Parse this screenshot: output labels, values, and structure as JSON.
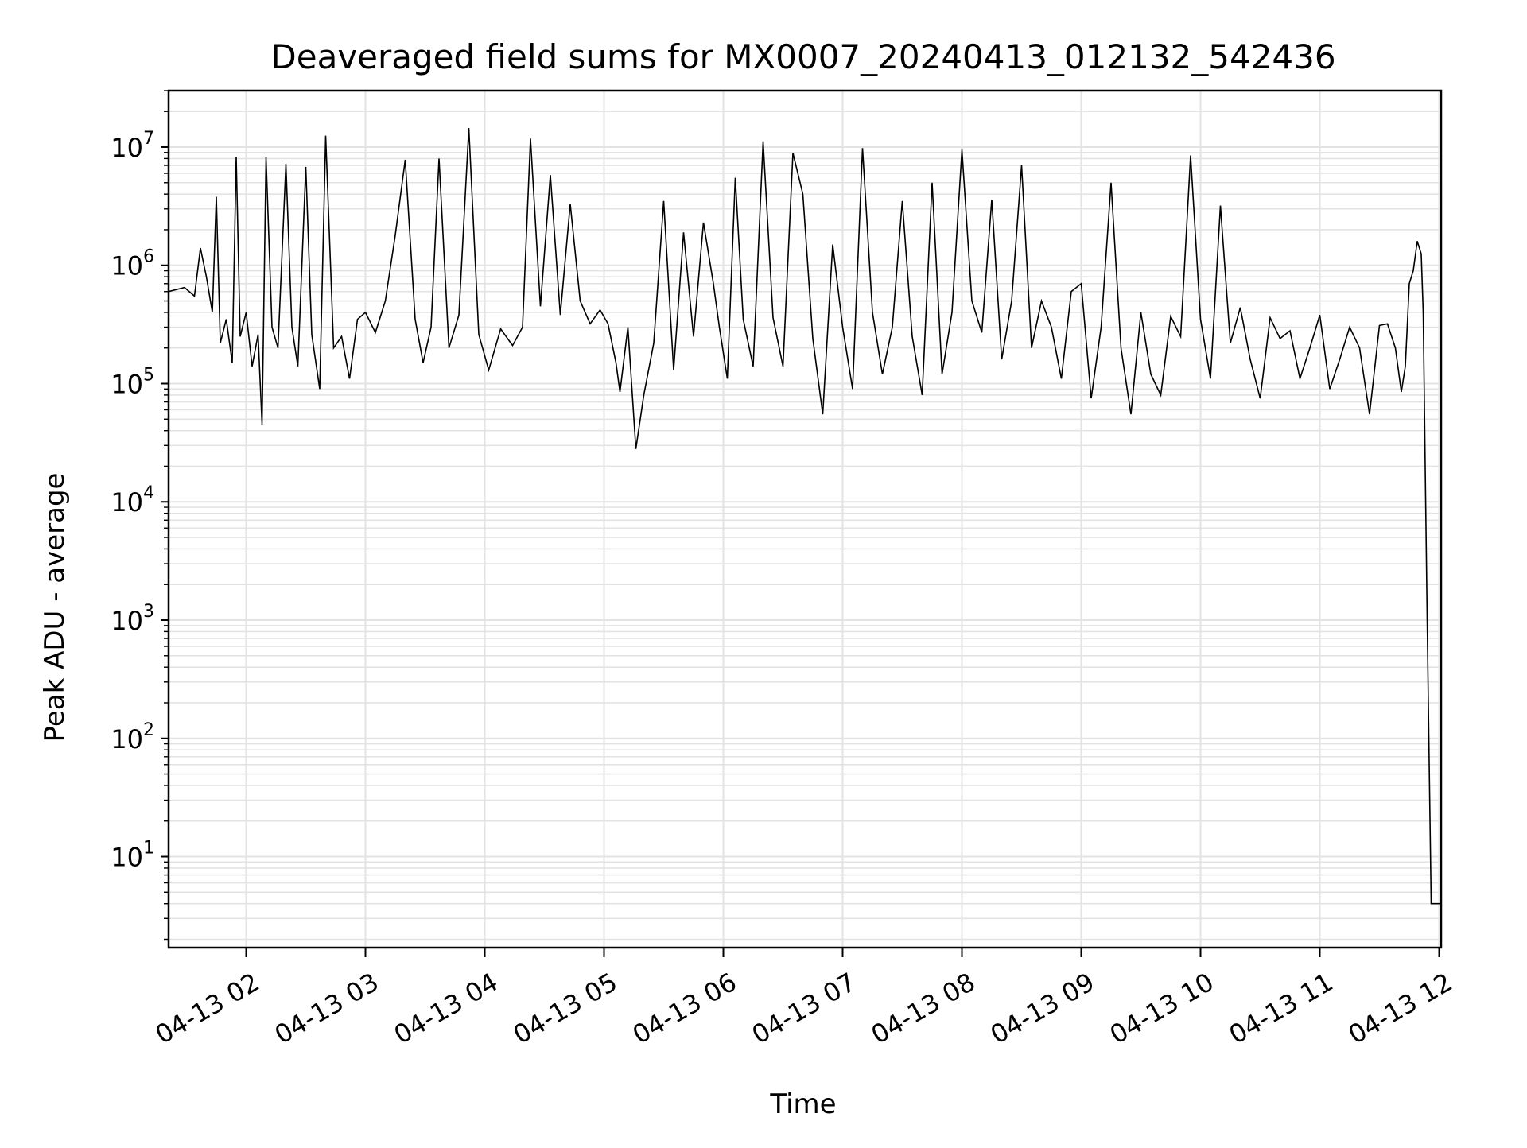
{
  "chart_data": {
    "type": "line",
    "title": "Deaveraged field sums for MX0007_20240413_012132_542436",
    "xlabel": "Time",
    "ylabel": "Peak ADU - average",
    "yscale": "log",
    "ylim": [
      1.7,
      30000000
    ],
    "xlim": [
      "2024-04-13 01:21",
      "2024-04-13 12:01"
    ],
    "grid": true,
    "legend": "none",
    "line_color": "#000000",
    "x_ticks": [
      "04-13 02",
      "04-13 03",
      "04-13 04",
      "04-13 05",
      "04-13 06",
      "04-13 07",
      "04-13 08",
      "04-13 09",
      "04-13 10",
      "04-13 11",
      "04-13 12"
    ],
    "y_ticks": [
      {
        "base": "10",
        "exp": "1",
        "value": 10
      },
      {
        "base": "10",
        "exp": "2",
        "value": 100
      },
      {
        "base": "10",
        "exp": "3",
        "value": 1000
      },
      {
        "base": "10",
        "exp": "4",
        "value": 10000
      },
      {
        "base": "10",
        "exp": "5",
        "value": 100000
      },
      {
        "base": "10",
        "exp": "6",
        "value": 1000000
      },
      {
        "base": "10",
        "exp": "7",
        "value": 10000000
      }
    ],
    "series": [
      {
        "x": [
          "2024-04-13 01:21",
          "2024-04-13 01:29",
          "2024-04-13 01:34",
          "2024-04-13 01:37",
          "2024-04-13 01:40",
          "2024-04-13 01:43",
          "2024-04-13 01:45",
          "2024-04-13 01:47",
          "2024-04-13 01:50",
          "2024-04-13 01:53",
          "2024-04-13 01:55",
          "2024-04-13 01:57",
          "2024-04-13 02:00",
          "2024-04-13 02:03",
          "2024-04-13 02:06",
          "2024-04-13 02:08",
          "2024-04-13 02:10",
          "2024-04-13 02:13",
          "2024-04-13 02:16",
          "2024-04-13 02:20",
          "2024-04-13 02:23",
          "2024-04-13 02:26",
          "2024-04-13 02:30",
          "2024-04-13 02:33",
          "2024-04-13 02:37",
          "2024-04-13 02:40",
          "2024-04-13 02:44",
          "2024-04-13 02:48",
          "2024-04-13 02:52",
          "2024-04-13 02:56",
          "2024-04-13 03:00",
          "2024-04-13 03:05",
          "2024-04-13 03:10",
          "2024-04-13 03:15",
          "2024-04-13 03:20",
          "2024-04-13 03:25",
          "2024-04-13 03:29",
          "2024-04-13 03:33",
          "2024-04-13 03:37",
          "2024-04-13 03:42",
          "2024-04-13 03:47",
          "2024-04-13 03:52",
          "2024-04-13 03:57",
          "2024-04-13 04:02",
          "2024-04-13 04:08",
          "2024-04-13 04:14",
          "2024-04-13 04:19",
          "2024-04-13 04:23",
          "2024-04-13 04:28",
          "2024-04-13 04:33",
          "2024-04-13 04:38",
          "2024-04-13 04:43",
          "2024-04-13 04:48",
          "2024-04-13 04:53",
          "2024-04-13 04:58",
          "2024-04-13 05:02",
          "2024-04-13 05:06",
          "2024-04-13 05:08",
          "2024-04-13 05:12",
          "2024-04-13 05:16",
          "2024-04-13 05:20",
          "2024-04-13 05:25",
          "2024-04-13 05:30",
          "2024-04-13 05:35",
          "2024-04-13 05:40",
          "2024-04-13 05:45",
          "2024-04-13 05:50",
          "2024-04-13 05:55",
          "2024-04-13 05:58",
          "2024-04-13 06:02",
          "2024-04-13 06:06",
          "2024-04-13 06:10",
          "2024-04-13 06:15",
          "2024-04-13 06:20",
          "2024-04-13 06:25",
          "2024-04-13 06:30",
          "2024-04-13 06:35",
          "2024-04-13 06:40",
          "2024-04-13 06:45",
          "2024-04-13 06:50",
          "2024-04-13 06:55",
          "2024-04-13 07:00",
          "2024-04-13 07:05",
          "2024-04-13 07:10",
          "2024-04-13 07:15",
          "2024-04-13 07:20",
          "2024-04-13 07:25",
          "2024-04-13 07:30",
          "2024-04-13 07:35",
          "2024-04-13 07:40",
          "2024-04-13 07:45",
          "2024-04-13 07:50",
          "2024-04-13 07:55",
          "2024-04-13 08:00",
          "2024-04-13 08:05",
          "2024-04-13 08:10",
          "2024-04-13 08:15",
          "2024-04-13 08:20",
          "2024-04-13 08:25",
          "2024-04-13 08:30",
          "2024-04-13 08:35",
          "2024-04-13 08:40",
          "2024-04-13 08:45",
          "2024-04-13 08:50",
          "2024-04-13 08:55",
          "2024-04-13 09:00",
          "2024-04-13 09:05",
          "2024-04-13 09:10",
          "2024-04-13 09:15",
          "2024-04-13 09:20",
          "2024-04-13 09:25",
          "2024-04-13 09:30",
          "2024-04-13 09:35",
          "2024-04-13 09:40",
          "2024-04-13 09:45",
          "2024-04-13 09:50",
          "2024-04-13 09:55",
          "2024-04-13 10:00",
          "2024-04-13 10:05",
          "2024-04-13 10:10",
          "2024-04-13 10:15",
          "2024-04-13 10:20",
          "2024-04-13 10:25",
          "2024-04-13 10:30",
          "2024-04-13 10:35",
          "2024-04-13 10:40",
          "2024-04-13 10:45",
          "2024-04-13 10:50",
          "2024-04-13 10:55",
          "2024-04-13 11:00",
          "2024-04-13 11:05",
          "2024-04-13 11:10",
          "2024-04-13 11:15",
          "2024-04-13 11:20",
          "2024-04-13 11:25",
          "2024-04-13 11:30",
          "2024-04-13 11:34",
          "2024-04-13 11:38",
          "2024-04-13 11:41",
          "2024-04-13 11:43",
          "2024-04-13 11:45",
          "2024-04-13 11:47",
          "2024-04-13 11:49",
          "2024-04-13 11:51",
          "2024-04-13 11:52",
          "2024-04-13 11:54",
          "2024-04-13 11:56",
          "2024-04-13 12:01"
        ],
        "y": [
          600000,
          650000,
          550000,
          1400000,
          800000,
          400000,
          3800000,
          220000,
          350000,
          150000,
          8300000,
          250000,
          400000,
          140000,
          260000,
          45000,
          8200000,
          300000,
          200000,
          7200000,
          300000,
          140000,
          6800000,
          260000,
          90000,
          12500000,
          200000,
          250000,
          110000,
          350000,
          400000,
          270000,
          500000,
          1800000,
          7800000,
          350000,
          150000,
          300000,
          8000000,
          200000,
          380000,
          14500000,
          260000,
          130000,
          290000,
          210000,
          300000,
          11800000,
          450000,
          5800000,
          380000,
          3300000,
          500000,
          320000,
          420000,
          320000,
          150000,
          85000,
          300000,
          28000,
          80000,
          220000,
          3500000,
          130000,
          1900000,
          250000,
          2300000,
          700000,
          300000,
          110000,
          5500000,
          350000,
          140000,
          11200000,
          360000,
          140000,
          8900000,
          4000000,
          240000,
          55000,
          1500000,
          300000,
          90000,
          9800000,
          400000,
          120000,
          300000,
          3500000,
          250000,
          80000,
          5000000,
          120000,
          400000,
          9500000,
          500000,
          270000,
          3600000,
          160000,
          500000,
          7000000,
          200000,
          500000,
          300000,
          110000,
          600000,
          700000,
          75000,
          300000,
          5000000,
          200000,
          55000,
          400000,
          120000,
          80000,
          370000,
          250000,
          8500000,
          350000,
          110000,
          3200000,
          220000,
          440000,
          160000,
          75000,
          360000,
          240000,
          280000,
          110000,
          200000,
          380000,
          90000,
          160000,
          300000,
          200000,
          55000,
          310000,
          320000,
          200000,
          85000,
          140000,
          700000,
          900000,
          1600000,
          1250000,
          400000,
          1000,
          4,
          4
        ]
      }
    ]
  }
}
